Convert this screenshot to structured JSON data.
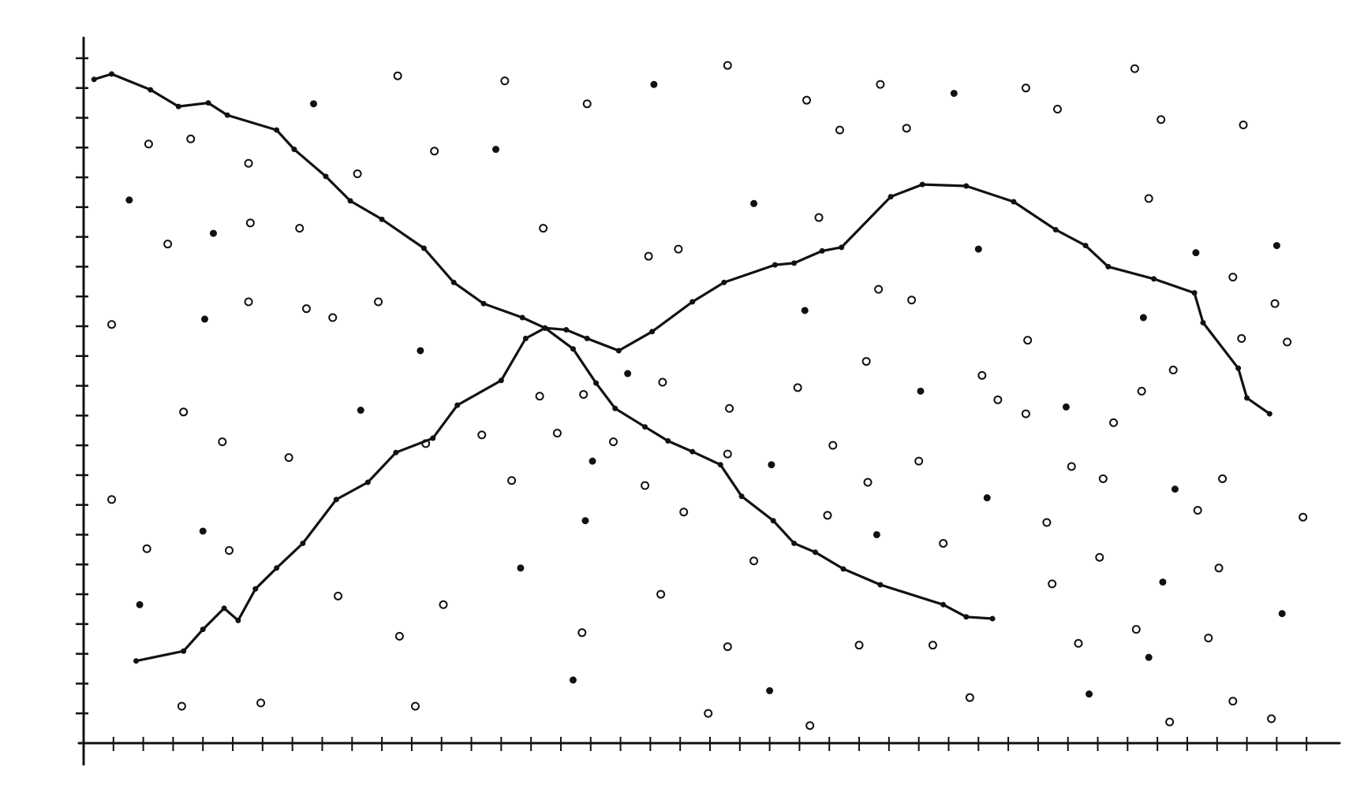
{
  "chart_data": {
    "type": "line",
    "xlim": [
      0,
      42
    ],
    "ylim": [
      0,
      23.5
    ],
    "xticks": [
      1,
      2,
      3,
      4,
      5,
      6,
      7,
      8,
      9,
      10,
      11,
      12,
      13,
      14,
      15,
      16,
      17,
      18,
      19,
      20,
      21,
      22,
      23,
      24,
      25,
      26,
      27,
      28,
      29,
      30,
      31,
      32,
      33,
      34,
      35,
      36,
      37,
      38,
      39,
      40,
      41
    ],
    "yticks": [
      1,
      2,
      3,
      4,
      5,
      6,
      7,
      8,
      9,
      10,
      11,
      12,
      13,
      14,
      15,
      16,
      17,
      18,
      19,
      20,
      21,
      22,
      23
    ],
    "series": [
      {
        "type": "line",
        "color": "#111111",
        "x": [
          0.35,
          0.94,
          2.24,
          3.18,
          4.18,
          4.82,
          6.47,
          7.06,
          8.12,
          8.94,
          10.0,
          11.41,
          12.41,
          13.41,
          14.71,
          15.47,
          16.41,
          17.18,
          17.82,
          18.82,
          19.59,
          20.41,
          21.35,
          22.06,
          23.12,
          23.82,
          24.53,
          25.47,
          26.71,
          28.82,
          29.59,
          30.47
        ],
        "values": [
          22.29,
          22.47,
          21.94,
          21.38,
          21.5,
          21.09,
          20.59,
          19.94,
          19.03,
          18.21,
          17.59,
          16.62,
          15.47,
          14.76,
          14.29,
          13.94,
          13.24,
          12.09,
          11.24,
          10.62,
          10.15,
          9.79,
          9.35,
          8.29,
          7.47,
          6.71,
          6.41,
          5.85,
          5.32,
          4.65,
          4.24,
          4.18
        ]
      },
      {
        "type": "line",
        "color": "#111111",
        "x": [
          1.76,
          3.35,
          4.0,
          4.71,
          5.18,
          5.76,
          6.47,
          7.35,
          8.47,
          9.53,
          10.47,
          11.71,
          12.53,
          14.0,
          14.82,
          15.47,
          16.18,
          16.88,
          17.94,
          19.06,
          20.41,
          21.47,
          23.18,
          23.82,
          24.76,
          25.41,
          27.06,
          28.12,
          29.59,
          31.18,
          32.59,
          33.59,
          34.35,
          35.88,
          37.24,
          37.53,
          38.71,
          39.0,
          39.76
        ],
        "values": [
          2.76,
          3.09,
          3.82,
          4.53,
          4.12,
          5.18,
          5.88,
          6.71,
          8.18,
          8.76,
          9.76,
          10.24,
          11.35,
          12.18,
          13.59,
          13.94,
          13.88,
          13.59,
          13.18,
          13.82,
          14.82,
          15.47,
          16.06,
          16.12,
          16.53,
          16.65,
          18.35,
          18.76,
          18.71,
          18.18,
          17.24,
          16.71,
          16.0,
          15.59,
          15.12,
          14.12,
          12.59,
          11.59,
          11.06
        ]
      },
      {
        "type": "scatter",
        "color": "#111111",
        "x": [
          0.94,
          1.53,
          2.18,
          3.59,
          5.53,
          7.71,
          10.53,
          14.12,
          16.88,
          19.12,
          21.59,
          24.24,
          26.71,
          29.18,
          31.59,
          35.24,
          38.88,
          40.0,
          39.94,
          40.35,
          40.88,
          40.18,
          39.82,
          36.41,
          38.53,
          33.71,
          29.71,
          24.35,
          20.94,
          16.41,
          11.12,
          5.94,
          3.29,
          1.88,
          0.94,
          2.12,
          4.88,
          4.0,
          8.53,
          10.59,
          12.06,
          14.65,
          16.71,
          19.35,
          21.59,
          23.0,
          26.0,
          28.47,
          33.35,
          35.71,
          34.06,
          32.47,
          28.82,
          26.59,
          24.94,
          22.47,
          20.12,
          16.82,
          14.35,
          11.47,
          13.35,
          9.29,
          6.88,
          4.65,
          3.35,
          4.06,
          5.53,
          7.47,
          9.88,
          11.29,
          8.35,
          7.24,
          5.59,
          4.35,
          2.82,
          9.18,
          11.76,
          13.82,
          15.41,
          18.94,
          19.94,
          22.47,
          24.65,
          25.35,
          27.59,
          30.0,
          32.65,
          36.12,
          35.71,
          37.29,
          38.53,
          38.82,
          36.53,
          35.53,
          31.65,
          30.12,
          30.65,
          28.06,
          26.24,
          26.65,
          27.76,
          24.18,
          23.94,
          21.65,
          19.41,
          18.24,
          16.76,
          15.29,
          15.88,
          17.06,
          17.76,
          18.82,
          21.59,
          23.06,
          25.12,
          26.29,
          28.0,
          30.29,
          32.29,
          33.12,
          34.18,
          36.59,
          38.18,
          37.35,
          38.06,
          36.18,
          35.29,
          37.71,
          31.59,
          32.94,
          34.53,
          35.47
        ],
        "values": [
          14.06,
          18.24,
          20.12,
          20.29,
          19.47,
          21.47,
          22.41,
          22.24,
          21.47,
          22.12,
          22.76,
          21.59,
          22.12,
          21.82,
          22.0,
          22.65,
          20.76,
          16.71,
          14.76,
          13.47,
          7.59,
          4.35,
          0.82,
          0.71,
          1.41,
          1.65,
          1.53,
          0.59,
          1.0,
          2.12,
          1.24,
          1.35,
          1.24,
          4.65,
          8.18,
          6.53,
          6.47,
          7.12,
          4.94,
          3.59,
          4.65,
          5.88,
          3.71,
          5.0,
          3.24,
          1.76,
          3.29,
          3.29,
          3.35,
          2.88,
          6.24,
          5.35,
          6.71,
          7.0,
          7.65,
          6.12,
          7.76,
          7.47,
          8.82,
          10.06,
          10.35,
          11.18,
          9.59,
          10.12,
          11.12,
          14.24,
          14.82,
          14.59,
          14.82,
          13.18,
          14.29,
          17.29,
          17.47,
          17.12,
          16.76,
          19.12,
          19.88,
          19.94,
          17.29,
          16.35,
          16.59,
          18.12,
          17.65,
          20.59,
          20.65,
          16.59,
          21.29,
          20.94,
          18.29,
          16.47,
          15.65,
          13.59,
          12.53,
          14.29,
          13.53,
          12.35,
          11.53,
          11.82,
          12.82,
          15.24,
          14.88,
          14.53,
          11.94,
          11.24,
          12.12,
          12.41,
          11.71,
          11.65,
          10.41,
          9.47,
          10.12,
          8.65,
          9.71,
          9.35,
          10.0,
          8.76,
          9.47,
          8.24,
          7.41,
          9.29,
          8.88,
          8.53,
          8.88,
          7.82,
          5.88,
          5.41,
          3.82,
          3.53,
          11.06,
          11.29,
          10.76,
          11.82
        ]
      }
    ]
  }
}
